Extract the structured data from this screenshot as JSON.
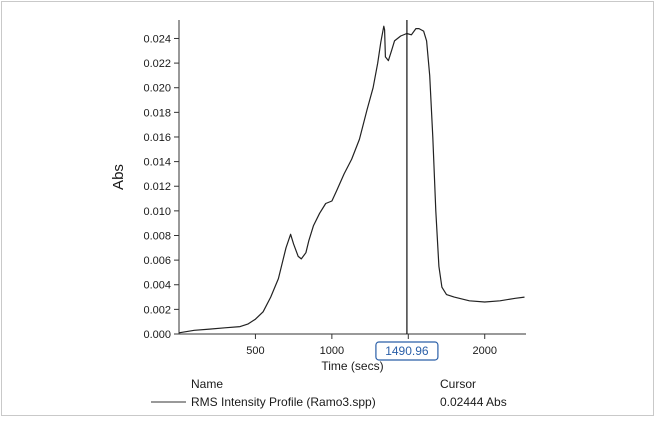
{
  "chart_data": {
    "type": "line",
    "xlabel": "Time (secs)",
    "ylabel": "Abs",
    "xlim": [
      0,
      2270
    ],
    "ylim": [
      0,
      0.0255
    ],
    "x_ticks": [
      500,
      1000,
      1500,
      2000
    ],
    "y_ticks": [
      0.0,
      0.002,
      0.004,
      0.006,
      0.008,
      0.01,
      0.012,
      0.014,
      0.016,
      0.018,
      0.02,
      0.022,
      0.024
    ],
    "y_tick_labels": [
      "0.000",
      "0.002",
      "0.004",
      "0.006",
      "0.008",
      "0.010",
      "0.012",
      "0.014",
      "0.016",
      "0.018",
      "0.020",
      "0.022",
      "0.024"
    ],
    "x_tick_labels": [
      "500",
      "1000",
      "1500",
      "2000"
    ],
    "grid": false,
    "series": [
      {
        "name": "RMS Intensity Profile (Ramo3.spp)",
        "color": "#222222",
        "x": [
          0,
          100,
          200,
          300,
          400,
          450,
          500,
          550,
          600,
          650,
          700,
          730,
          750,
          780,
          800,
          830,
          850,
          880,
          920,
          960,
          1000,
          1030,
          1080,
          1130,
          1180,
          1230,
          1270,
          1300,
          1320,
          1340,
          1345,
          1350,
          1370,
          1390,
          1410,
          1450,
          1490,
          1520,
          1550,
          1570,
          1600,
          1620,
          1640,
          1660,
          1680,
          1700,
          1720,
          1750,
          1800,
          1900,
          2000,
          2100,
          2200,
          2260
        ],
        "y": [
          0.0001,
          0.0003,
          0.0004,
          0.0005,
          0.0006,
          0.0008,
          0.0012,
          0.0018,
          0.003,
          0.0045,
          0.007,
          0.0081,
          0.0073,
          0.0063,
          0.0061,
          0.0066,
          0.0076,
          0.0088,
          0.0098,
          0.0106,
          0.0108,
          0.0116,
          0.013,
          0.0142,
          0.0158,
          0.0182,
          0.02,
          0.022,
          0.0237,
          0.025,
          0.0247,
          0.0225,
          0.0222,
          0.023,
          0.0238,
          0.0242,
          0.0244,
          0.0243,
          0.0248,
          0.0248,
          0.0246,
          0.0238,
          0.021,
          0.016,
          0.01,
          0.0055,
          0.0038,
          0.0032,
          0.003,
          0.0027,
          0.0026,
          0.0027,
          0.0029,
          0.003
        ]
      }
    ],
    "cursor": {
      "x": 1490.96,
      "label": "1490.96"
    },
    "legend": {
      "name_header": "Name",
      "cursor_header": "Cursor",
      "series_label": "RMS Intensity Profile (Ramo3.spp)",
      "cursor_value": "0.02444 Abs"
    }
  }
}
